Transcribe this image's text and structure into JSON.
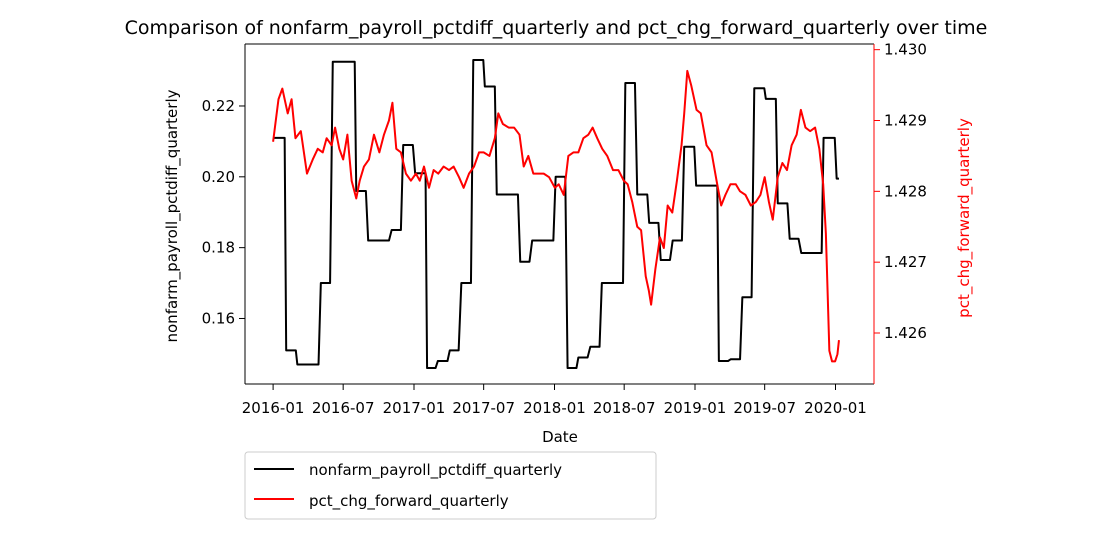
{
  "chart_data": {
    "type": "line",
    "title": "Comparison of nonfarm_payroll_pctdiff_quarterly and pct_chg_forward_quarterly over time",
    "xlabel": "Date",
    "ylabel_left": "nonfarm_payroll_pctdiff_quarterly",
    "ylabel_right": "pct_chg_forward_quarterly",
    "x_ticks": [
      "2016-01",
      "2016-07",
      "2017-01",
      "2017-07",
      "2018-01",
      "2018-07",
      "2019-01",
      "2019-07",
      "2020-01"
    ],
    "y_left_ticks": [
      "0.16",
      "0.18",
      "0.20",
      "0.22"
    ],
    "y_right_ticks": [
      "1.426",
      "1.427",
      "1.428",
      "1.429",
      "1.430"
    ],
    "y_left_range": [
      0.1415,
      0.2375
    ],
    "y_right_range": [
      1.42528,
      1.43008
    ],
    "x_range": [
      "2015-10-20",
      "2020-04-10"
    ],
    "legend_position": "below-left",
    "series": [
      {
        "name": "nonfarm_payroll_pctdiff_quarterly",
        "axis": "left",
        "color": "#000000",
        "points": [
          [
            "2016-01-01",
            0.211
          ],
          [
            "2016-01-04",
            0.211
          ],
          [
            "2016-01-31",
            0.211
          ],
          [
            "2016-02-04",
            0.151
          ],
          [
            "2016-02-29",
            0.151
          ],
          [
            "2016-03-04",
            0.147
          ],
          [
            "2016-04-28",
            0.147
          ],
          [
            "2016-05-04",
            0.17
          ],
          [
            "2016-05-28",
            0.17
          ],
          [
            "2016-06-04",
            0.2325
          ],
          [
            "2016-07-31",
            0.2325
          ],
          [
            "2016-08-04",
            0.196
          ],
          [
            "2016-08-29",
            0.196
          ],
          [
            "2016-09-04",
            0.182
          ],
          [
            "2016-10-28",
            0.182
          ],
          [
            "2016-11-04",
            0.185
          ],
          [
            "2016-11-28",
            0.185
          ],
          [
            "2016-12-04",
            0.209
          ],
          [
            "2016-12-29",
            0.209
          ],
          [
            "2017-01-04",
            0.201
          ],
          [
            "2017-01-31",
            0.201
          ],
          [
            "2017-02-04",
            0.146
          ],
          [
            "2017-02-26",
            0.146
          ],
          [
            "2017-03-04",
            0.148
          ],
          [
            "2017-03-29",
            0.148
          ],
          [
            "2017-04-04",
            0.151
          ],
          [
            "2017-04-27",
            0.151
          ],
          [
            "2017-05-04",
            0.17
          ],
          [
            "2017-05-29",
            0.17
          ],
          [
            "2017-06-04",
            0.233
          ],
          [
            "2017-06-30",
            0.233
          ],
          [
            "2017-07-04",
            0.2255
          ],
          [
            "2017-07-30",
            0.2255
          ],
          [
            "2017-08-04",
            0.195
          ],
          [
            "2017-09-28",
            0.195
          ],
          [
            "2017-10-04",
            0.176
          ],
          [
            "2017-10-28",
            0.176
          ],
          [
            "2017-11-04",
            0.182
          ],
          [
            "2017-12-29",
            0.182
          ],
          [
            "2018-01-04",
            0.2
          ],
          [
            "2018-01-29",
            0.2
          ],
          [
            "2018-02-04",
            0.146
          ],
          [
            "2018-02-27",
            0.146
          ],
          [
            "2018-03-04",
            0.149
          ],
          [
            "2018-03-28",
            0.149
          ],
          [
            "2018-04-04",
            0.152
          ],
          [
            "2018-04-28",
            0.152
          ],
          [
            "2018-05-04",
            0.17
          ],
          [
            "2018-06-28",
            0.17
          ],
          [
            "2018-07-04",
            0.2265
          ],
          [
            "2018-07-29",
            0.2265
          ],
          [
            "2018-08-04",
            0.195
          ],
          [
            "2018-08-30",
            0.195
          ],
          [
            "2018-09-04",
            0.187
          ],
          [
            "2018-09-28",
            0.187
          ],
          [
            "2018-10-04",
            0.1765
          ],
          [
            "2018-10-28",
            0.1765
          ],
          [
            "2018-11-04",
            0.182
          ],
          [
            "2018-11-28",
            0.182
          ],
          [
            "2018-12-04",
            0.2085
          ],
          [
            "2018-12-30",
            0.2085
          ],
          [
            "2019-01-04",
            0.1975
          ],
          [
            "2019-02-28",
            0.1975
          ],
          [
            "2019-03-04",
            0.148
          ],
          [
            "2019-03-28",
            0.148
          ],
          [
            "2019-04-04",
            0.1485
          ],
          [
            "2019-04-28",
            0.1485
          ],
          [
            "2019-05-04",
            0.166
          ],
          [
            "2019-05-28",
            0.166
          ],
          [
            "2019-06-04",
            0.225
          ],
          [
            "2019-06-30",
            0.225
          ],
          [
            "2019-07-04",
            0.222
          ],
          [
            "2019-07-30",
            0.222
          ],
          [
            "2019-08-04",
            0.1925
          ],
          [
            "2019-08-29",
            0.1925
          ],
          [
            "2019-09-04",
            0.1825
          ],
          [
            "2019-09-27",
            0.1825
          ],
          [
            "2019-10-04",
            0.1785
          ],
          [
            "2019-11-26",
            0.1785
          ],
          [
            "2019-12-01",
            0.211
          ],
          [
            "2019-12-30",
            0.211
          ],
          [
            "2020-01-04",
            0.1995
          ],
          [
            "2020-01-10",
            0.1995
          ]
        ]
      },
      {
        "name": "pct_chg_forward_quarterly",
        "axis": "right",
        "color": "#ff0000",
        "points": [
          [
            "2016-01-01",
            1.4287
          ],
          [
            "2016-01-15",
            1.4293
          ],
          [
            "2016-01-25",
            1.42945
          ],
          [
            "2016-02-08",
            1.4291
          ],
          [
            "2016-02-18",
            1.4293
          ],
          [
            "2016-02-28",
            1.42875
          ],
          [
            "2016-03-13",
            1.42885
          ],
          [
            "2016-03-29",
            1.42825
          ],
          [
            "2016-04-13",
            1.42845
          ],
          [
            "2016-04-26",
            1.4286
          ],
          [
            "2016-05-09",
            1.42855
          ],
          [
            "2016-05-19",
            1.42875
          ],
          [
            "2016-06-01",
            1.42865
          ],
          [
            "2016-06-10",
            1.4289
          ],
          [
            "2016-06-21",
            1.4286
          ],
          [
            "2016-07-01",
            1.42845
          ],
          [
            "2016-07-12",
            1.4288
          ],
          [
            "2016-07-23",
            1.42815
          ],
          [
            "2016-08-04",
            1.4279
          ],
          [
            "2016-08-13",
            1.42815
          ],
          [
            "2016-08-24",
            1.42835
          ],
          [
            "2016-09-06",
            1.42845
          ],
          [
            "2016-09-19",
            1.4288
          ],
          [
            "2016-10-03",
            1.42855
          ],
          [
            "2016-10-15",
            1.4288
          ],
          [
            "2016-10-28",
            1.429
          ],
          [
            "2016-11-06",
            1.42925
          ],
          [
            "2016-11-16",
            1.4286
          ],
          [
            "2016-11-28",
            1.42855
          ],
          [
            "2016-12-11",
            1.42825
          ],
          [
            "2016-12-24",
            1.42815
          ],
          [
            "2017-01-06",
            1.42825
          ],
          [
            "2017-01-16",
            1.42815
          ],
          [
            "2017-01-27",
            1.42835
          ],
          [
            "2017-02-09",
            1.42805
          ],
          [
            "2017-02-21",
            1.4283
          ],
          [
            "2017-03-05",
            1.42825
          ],
          [
            "2017-03-19",
            1.42835
          ],
          [
            "2017-04-02",
            1.4283
          ],
          [
            "2017-04-14",
            1.42835
          ],
          [
            "2017-04-28",
            1.4282
          ],
          [
            "2017-05-10",
            1.42805
          ],
          [
            "2017-05-24",
            1.42825
          ],
          [
            "2017-06-06",
            1.42835
          ],
          [
            "2017-06-19",
            1.42855
          ],
          [
            "2017-07-01",
            1.42855
          ],
          [
            "2017-07-16",
            1.4285
          ],
          [
            "2017-07-30",
            1.42875
          ],
          [
            "2017-08-08",
            1.4291
          ],
          [
            "2017-08-20",
            1.42895
          ],
          [
            "2017-09-04",
            1.4289
          ],
          [
            "2017-09-18",
            1.4289
          ],
          [
            "2017-10-02",
            1.4288
          ],
          [
            "2017-10-13",
            1.42835
          ],
          [
            "2017-10-25",
            1.4285
          ],
          [
            "2017-11-07",
            1.42825
          ],
          [
            "2017-11-19",
            1.42825
          ],
          [
            "2017-12-04",
            1.42825
          ],
          [
            "2017-12-18",
            1.4282
          ],
          [
            "2018-01-02",
            1.42805
          ],
          [
            "2018-01-12",
            1.4281
          ],
          [
            "2018-01-25",
            1.42795
          ],
          [
            "2018-02-06",
            1.4285
          ],
          [
            "2018-02-19",
            1.42855
          ],
          [
            "2018-03-04",
            1.42855
          ],
          [
            "2018-03-17",
            1.42875
          ],
          [
            "2018-03-30",
            1.4288
          ],
          [
            "2018-04-10",
            1.4289
          ],
          [
            "2018-04-22",
            1.42875
          ],
          [
            "2018-05-05",
            1.4286
          ],
          [
            "2018-05-18",
            1.4285
          ],
          [
            "2018-06-02",
            1.4283
          ],
          [
            "2018-06-16",
            1.4283
          ],
          [
            "2018-06-30",
            1.42815
          ],
          [
            "2018-07-10",
            1.4281
          ],
          [
            "2018-07-22",
            1.42785
          ],
          [
            "2018-08-04",
            1.4275
          ],
          [
            "2018-08-14",
            1.42745
          ],
          [
            "2018-08-26",
            1.4268
          ],
          [
            "2018-09-03",
            1.4266
          ],
          [
            "2018-09-09",
            1.4264
          ],
          [
            "2018-09-20",
            1.4269
          ],
          [
            "2018-10-02",
            1.42735
          ],
          [
            "2018-10-12",
            1.4272
          ],
          [
            "2018-10-22",
            1.4278
          ],
          [
            "2018-11-03",
            1.4277
          ],
          [
            "2018-11-15",
            1.42815
          ],
          [
            "2018-11-27",
            1.42865
          ],
          [
            "2018-12-04",
            1.4291
          ],
          [
            "2018-12-12",
            1.4297
          ],
          [
            "2018-12-22",
            1.4295
          ],
          [
            "2019-01-05",
            1.42915
          ],
          [
            "2019-01-16",
            1.4291
          ],
          [
            "2019-01-31",
            1.42865
          ],
          [
            "2019-02-13",
            1.42855
          ],
          [
            "2019-02-26",
            1.42815
          ],
          [
            "2019-03-10",
            1.4278
          ],
          [
            "2019-03-21",
            1.42795
          ],
          [
            "2019-04-03",
            1.4281
          ],
          [
            "2019-04-17",
            1.4281
          ],
          [
            "2019-04-28",
            1.428
          ],
          [
            "2019-05-12",
            1.42795
          ],
          [
            "2019-05-26",
            1.4278
          ],
          [
            "2019-06-08",
            1.42785
          ],
          [
            "2019-06-20",
            1.42795
          ],
          [
            "2019-07-01",
            1.4282
          ],
          [
            "2019-07-12",
            1.42785
          ],
          [
            "2019-07-22",
            1.4276
          ],
          [
            "2019-08-04",
            1.4282
          ],
          [
            "2019-08-16",
            1.4284
          ],
          [
            "2019-08-28",
            1.4283
          ],
          [
            "2019-09-09",
            1.42865
          ],
          [
            "2019-09-22",
            1.4288
          ],
          [
            "2019-10-03",
            1.42915
          ],
          [
            "2019-10-15",
            1.4289
          ],
          [
            "2019-10-27",
            1.42885
          ],
          [
            "2019-11-09",
            1.4289
          ],
          [
            "2019-11-20",
            1.4286
          ],
          [
            "2019-11-30",
            1.4281
          ],
          [
            "2019-12-07",
            1.4274
          ],
          [
            "2019-12-16",
            1.42575
          ],
          [
            "2019-12-23",
            1.4256
          ],
          [
            "2019-12-31",
            1.4256
          ],
          [
            "2020-01-06",
            1.4257
          ],
          [
            "2020-01-10",
            1.4259
          ]
        ]
      }
    ]
  }
}
